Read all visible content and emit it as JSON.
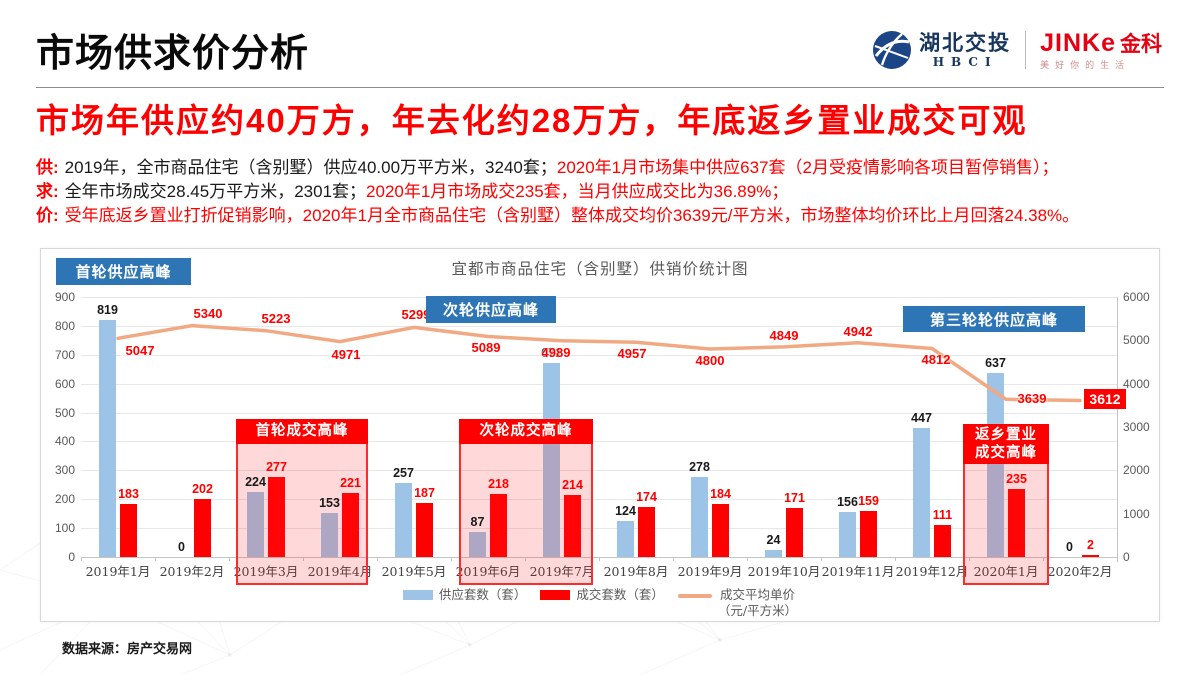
{
  "header": {
    "title": "市场供求价分析",
    "logos": {
      "hbci_cn": "湖北交投",
      "hbci_en": "HBCI",
      "jinke_en": "JINKe",
      "jinke_cn": "金科",
      "jinke_slogan": "美好你的生活"
    }
  },
  "headline": "市场年供应约40万方，年去化约28万方，年底返乡置业成交可观",
  "summary": [
    {
      "label": "供:",
      "black": "2019年，全市商品住宅（含别墅）供应40.00万平方米，3240套；",
      "red": "2020年1月市场集中供应637套（2月受疫情影响各项目暂停销售）；"
    },
    {
      "label": "求:",
      "black": "全年市场成交28.45万平方米，2301套；",
      "red": "2020年1月市场成交235套，当月供应成交比为36.89%；"
    },
    {
      "label": "价:",
      "black": "",
      "red": "受年底返乡置业打折促销影响，2020年1月全市商品住宅（含别墅）整体成交均价3639元/平方米，市场整体均价环比上月回落24.38%。"
    }
  ],
  "chart_data": {
    "type": "bar+line combo",
    "title": "宜都市商品住宅（含别墅）供销价统计图",
    "categories": [
      "2019年1月",
      "2019年2月",
      "2019年3月",
      "2019年4月",
      "2019年5月",
      "2019年6月",
      "2019年7月",
      "2019年8月",
      "2019年9月",
      "2019年10月",
      "2019年11月",
      "2019年12月",
      "2020年1月",
      "2020年2月"
    ],
    "series": [
      {
        "name": "供应套数（套）",
        "type": "bar",
        "color": "#9dc3e6",
        "axis": "left",
        "values": [
          819,
          0,
          224,
          153,
          257,
          87,
          671,
          124,
          278,
          24,
          156,
          447,
          637,
          0
        ]
      },
      {
        "name": "成交套数（套）",
        "type": "bar",
        "color": "#ff0000",
        "axis": "left",
        "values": [
          183,
          202,
          277,
          221,
          187,
          218,
          214,
          174,
          184,
          171,
          159,
          111,
          235,
          2
        ]
      },
      {
        "name": "成交平均单价\n（元/平方米）",
        "type": "line",
        "color": "#f1a983",
        "axis": "right",
        "values": [
          5047,
          5340,
          5223,
          4971,
          5299,
          5089,
          4989,
          4957,
          4800,
          4849,
          4942,
          4812,
          3639,
          3612
        ]
      }
    ],
    "left_axis": {
      "min": 0,
      "max": 900,
      "step": 100
    },
    "right_axis": {
      "min": 0,
      "max": 6000,
      "step": 1000
    },
    "grid": true,
    "legend_position": "bottom",
    "price_badge": "3612",
    "callouts_blue": [
      "首轮供应高峰",
      "次轮供应高峰",
      "第三轮轮供应高峰"
    ],
    "highlights": [
      {
        "label": "首轮成交高峰",
        "from": 2,
        "to": 3
      },
      {
        "label": "次轮成交高峰",
        "from": 5,
        "to": 6
      },
      {
        "label": "返乡置业\n成交高峰",
        "from": 12,
        "to": 12
      }
    ]
  },
  "source": "数据来源：房产交易网"
}
